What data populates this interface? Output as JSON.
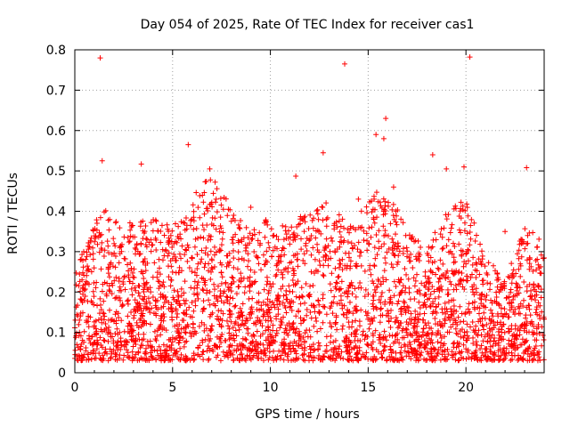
{
  "chart_data": {
    "type": "scatter",
    "title": "Day 054 of 2025, Rate Of TEC Index for receiver cas1",
    "xlabel": "GPS time / hours",
    "ylabel": "ROTI / TECUs",
    "xlim": [
      0,
      24
    ],
    "ylim": [
      0,
      0.8
    ],
    "xticks": [
      0,
      5,
      10,
      15,
      20
    ],
    "xtick_labels": [
      "0",
      "5",
      "10",
      "15",
      "20"
    ],
    "yticks": [
      0,
      0.1,
      0.2,
      0.3,
      0.4,
      0.5,
      0.6,
      0.7,
      0.8
    ],
    "ytick_labels": [
      "0",
      "0.1",
      "0.2",
      "0.3",
      "0.4",
      "0.5",
      "0.6",
      "0.7",
      "0.8"
    ],
    "grid": true,
    "marker": "+",
    "marker_color": "#ff0000",
    "series": [
      {
        "name": "ROTI",
        "x": [
          1.3,
          13.8,
          20.2,
          3.4,
          1.4,
          5.8,
          15.9,
          15.8,
          15.4,
          12.7,
          18.3,
          19.9,
          19.0,
          23.1,
          6.9,
          11.3,
          16.3,
          9.0,
          14.5,
          22.0
        ],
        "y": [
          0.78,
          0.765,
          0.782,
          0.517,
          0.525,
          0.565,
          0.63,
          0.58,
          0.59,
          0.545,
          0.54,
          0.51,
          0.505,
          0.508,
          0.505,
          0.487,
          0.46,
          0.41,
          0.43,
          0.35
        ]
      }
    ],
    "bulk_envelope_x": [
      0,
      1,
      1.5,
      2,
      3,
      4,
      5,
      6,
      7,
      8,
      9,
      10,
      11,
      12,
      13,
      14,
      15,
      16,
      17,
      18,
      19,
      20,
      21,
      22,
      23,
      24
    ],
    "bulk_envelope_y": [
      0.22,
      0.34,
      0.38,
      0.35,
      0.34,
      0.36,
      0.33,
      0.4,
      0.48,
      0.38,
      0.32,
      0.36,
      0.33,
      0.38,
      0.4,
      0.33,
      0.4,
      0.44,
      0.32,
      0.28,
      0.38,
      0.4,
      0.26,
      0.2,
      0.33,
      0.3
    ]
  }
}
